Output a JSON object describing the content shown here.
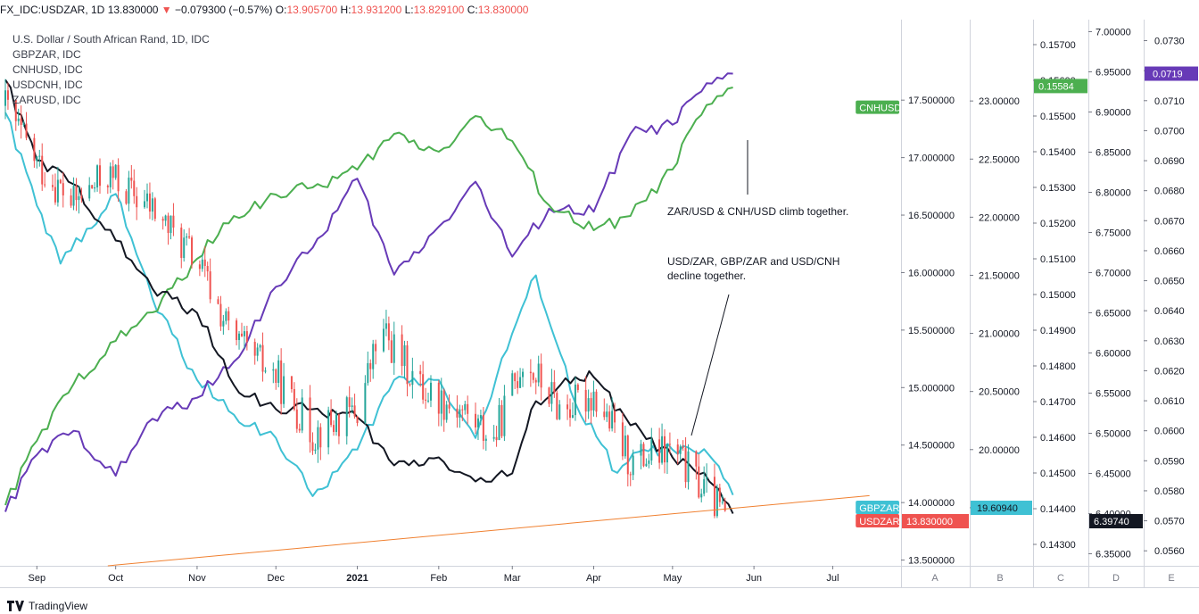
{
  "header": {
    "symbol": "FX_IDC:USDZAR, 1D",
    "last": "13.830000",
    "change": "−0.079300 (−0.57%)",
    "o_label": "O:",
    "o_val": "13.905700",
    "h_label": "H:",
    "h_val": "13.931200",
    "l_label": "L:",
    "l_val": "13.829100",
    "c_label": "C:",
    "c_val": "13.830000"
  },
  "legend": [
    "U.S. Dollar / South African Rand, 1D, IDC",
    "GBPZAR, IDC",
    "CNHUSD, IDC",
    "USDCNH, IDC",
    "ZARUSD, IDC"
  ],
  "annotations": {
    "climb": "ZAR/USD & CNH/USD climb together.",
    "decline_1": "USD/ZAR, GBP/ZAR and USD/CNH",
    "decline_2": "decline together."
  },
  "footer": {
    "brand": "TradingView"
  },
  "colors": {
    "usdzar_up": "#26a69a",
    "usdzar_down": "#ef5350",
    "gbpzar": "#3fc1d4",
    "cnhusd": "#4caf50",
    "usdcnh": "#131722",
    "zarusd": "#673ab7",
    "trendline": "#f08030"
  },
  "chart_data": {
    "type": "line",
    "x_axis": {
      "ticks": [
        "Sep",
        "Oct",
        "Nov",
        "Dec",
        "2021",
        "Feb",
        "Mar",
        "Apr",
        "May",
        "Jun",
        "Jul"
      ]
    },
    "scales": [
      {
        "id": "main",
        "series": "USDZAR",
        "ticks": [
          "17.500000",
          "17.000000",
          "16.500000",
          "16.000000",
          "15.500000",
          "15.000000",
          "14.500000",
          "14.000000",
          "13.500000"
        ],
        "range": [
          13.45,
          18.2
        ],
        "label_current": "13.830000",
        "tag": "USDZAR",
        "pane": ""
      },
      {
        "id": "A",
        "series": "GBPZAR",
        "ticks": [
          "23.00000",
          "22.50000",
          "22.00000",
          "21.50000",
          "21.00000",
          "20.50000",
          "20.00000",
          "19.50000"
        ],
        "range": [
          19.0,
          23.7
        ],
        "label_current": "19.60940",
        "tag": "GBPZAR",
        "pane": "A"
      },
      {
        "id": "B",
        "series": "CNHUSD",
        "ticks": [
          "0.15700",
          "0.15600",
          "0.15500",
          "0.15400",
          "0.15300",
          "0.15200",
          "0.15100",
          "0.15000",
          "0.14900",
          "0.14800",
          "0.14700",
          "0.14600",
          "0.14500",
          "0.14400",
          "0.14300"
        ],
        "range": [
          0.1424,
          0.1577
        ],
        "label_current": "0.15584",
        "tag": "CNHUSD",
        "pane": "B"
      },
      {
        "id": "C",
        "series": "USDCNH",
        "ticks": [
          "7.00000",
          "6.95000",
          "6.90000",
          "6.85000",
          "6.80000",
          "6.75000",
          "6.70000",
          "6.65000",
          "6.60000",
          "6.55000",
          "6.50000",
          "6.45000",
          "6.40000",
          "6.35000"
        ],
        "range": [
          6.335,
          7.015
        ],
        "label_current": "6.39740",
        "pane": "C"
      },
      {
        "id": "D",
        "series": "ZARUSD",
        "ticks": [
          "0.0730",
          "0.0720",
          "0.0710",
          "0.0700",
          "0.0690",
          "0.0680",
          "0.0670",
          "0.0660",
          "0.0650",
          "0.0640",
          "0.0630",
          "0.0620",
          "0.0610",
          "0.0600",
          "0.0590",
          "0.0580",
          "0.0570",
          "0.0560"
        ],
        "range": [
          0.0555,
          0.0737
        ],
        "label_current": "0.0719",
        "pane": "D"
      },
      {
        "id": "E",
        "series": "",
        "ticks": [],
        "range": [
          0,
          1
        ],
        "pane": "E"
      }
    ],
    "series": [
      {
        "name": "USDZAR",
        "x": [
          "2020-08-20",
          "2020-09-01",
          "2020-09-15",
          "2020-09-28",
          "2020-10-15",
          "2020-11-01",
          "2020-11-15",
          "2020-12-01",
          "2020-12-15",
          "2021-01-01",
          "2021-01-10",
          "2021-01-25",
          "2021-02-10",
          "2021-02-22",
          "2021-03-05",
          "2021-03-20",
          "2021-04-01",
          "2021-04-15",
          "2021-05-01",
          "2021-05-15",
          "2021-05-24"
        ],
        "values": [
          17.45,
          16.95,
          16.6,
          16.85,
          16.55,
          16.1,
          15.4,
          15.1,
          14.6,
          14.8,
          15.5,
          15.0,
          14.8,
          14.55,
          15.25,
          14.8,
          14.95,
          14.35,
          14.45,
          14.05,
          13.83
        ]
      },
      {
        "name": "GBPZAR",
        "x": [
          "2020-08-20",
          "2020-09-01",
          "2020-09-10",
          "2020-09-20",
          "2020-10-01",
          "2020-10-15",
          "2020-11-01",
          "2020-11-15",
          "2020-12-01",
          "2020-12-15",
          "2021-01-01",
          "2021-01-15",
          "2021-02-01",
          "2021-02-15",
          "2021-03-01",
          "2021-03-10",
          "2021-03-25",
          "2021-04-10",
          "2021-04-20",
          "2021-05-01",
          "2021-05-15",
          "2021-05-24"
        ],
        "values": [
          22.9,
          22.1,
          21.6,
          21.9,
          22.2,
          21.3,
          20.6,
          20.3,
          20.1,
          19.6,
          20.0,
          20.6,
          20.6,
          20.1,
          21.0,
          21.5,
          20.4,
          19.8,
          20.0,
          20.0,
          19.95,
          19.61
        ]
      },
      {
        "name": "CNHUSD",
        "x": [
          "2020-08-20",
          "2020-09-01",
          "2020-09-15",
          "2020-10-01",
          "2020-10-15",
          "2020-11-01",
          "2020-11-15",
          "2020-12-01",
          "2020-12-15",
          "2021-01-01",
          "2021-01-15",
          "2021-02-01",
          "2021-02-15",
          "2021-03-01",
          "2021-03-15",
          "2021-04-01",
          "2021-04-15",
          "2021-05-01",
          "2021-05-10",
          "2021-05-24"
        ],
        "values": [
          0.1441,
          0.1459,
          0.1475,
          0.1487,
          0.1495,
          0.151,
          0.1522,
          0.1528,
          0.153,
          0.1535,
          0.1545,
          0.154,
          0.155,
          0.1543,
          0.1525,
          0.1518,
          0.1522,
          0.1535,
          0.1549,
          0.1558
        ]
      },
      {
        "name": "USDCNH",
        "x": [
          "2020-08-20",
          "2020-09-01",
          "2020-09-15",
          "2020-10-01",
          "2020-10-15",
          "2020-11-01",
          "2020-11-15",
          "2020-12-01",
          "2020-12-15",
          "2021-01-01",
          "2021-01-15",
          "2021-02-01",
          "2021-02-15",
          "2021-03-01",
          "2021-03-10",
          "2021-03-25",
          "2021-04-01",
          "2021-04-15",
          "2021-05-01",
          "2021-05-15",
          "2021-05-24"
        ],
        "values": [
          6.94,
          6.84,
          6.81,
          6.74,
          6.68,
          6.65,
          6.56,
          6.53,
          6.53,
          6.52,
          6.46,
          6.47,
          6.44,
          6.45,
          6.54,
          6.57,
          6.57,
          6.51,
          6.47,
          6.44,
          6.4
        ]
      },
      {
        "name": "ZARUSD",
        "x": [
          "2020-08-20",
          "2020-09-01",
          "2020-09-15",
          "2020-10-01",
          "2020-10-15",
          "2020-11-01",
          "2020-11-15",
          "2020-12-01",
          "2020-12-15",
          "2021-01-01",
          "2021-01-15",
          "2021-02-01",
          "2021-02-15",
          "2021-03-01",
          "2021-03-15",
          "2021-04-01",
          "2021-04-15",
          "2021-05-01",
          "2021-05-10",
          "2021-05-24"
        ],
        "values": [
          0.0573,
          0.0592,
          0.06,
          0.0585,
          0.0604,
          0.0611,
          0.0623,
          0.0648,
          0.0661,
          0.0684,
          0.0652,
          0.0668,
          0.0683,
          0.0658,
          0.0674,
          0.0673,
          0.0699,
          0.0702,
          0.0712,
          0.0719
        ]
      }
    ],
    "trendline": {
      "series": "USDZAR",
      "from": [
        "2020-09-28",
        13.45
      ],
      "to": [
        "2021-07-15",
        14.06
      ]
    },
    "grid": false,
    "legend_position": "top-left"
  }
}
